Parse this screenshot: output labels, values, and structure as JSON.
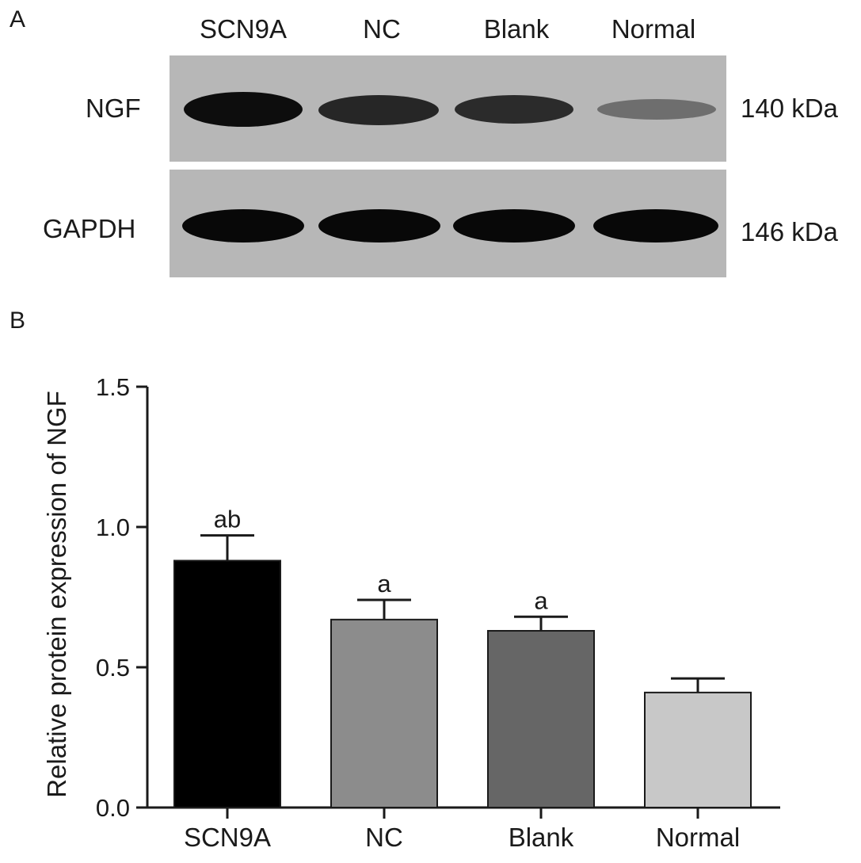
{
  "panel_a": {
    "letter": "A",
    "lanes": [
      "SCN9A",
      "NC",
      "Blank",
      "Normal"
    ],
    "rows": [
      {
        "label": "NGF",
        "size": "140 kDa",
        "band_intensity": [
          1.0,
          0.85,
          0.82,
          0.45
        ]
      },
      {
        "label": "GAPDH",
        "size": "146 kDa",
        "band_intensity": [
          1.0,
          1.0,
          1.0,
          1.0
        ]
      }
    ]
  },
  "panel_b": {
    "letter": "B"
  },
  "chart_data": {
    "type": "bar",
    "categories": [
      "SCN9A",
      "NC",
      "Blank",
      "Normal"
    ],
    "values": [
      0.88,
      0.67,
      0.63,
      0.41
    ],
    "errors": [
      0.09,
      0.07,
      0.05,
      0.05
    ],
    "annotations": [
      "ab",
      "a",
      "a",
      ""
    ],
    "colors": [
      "#000000",
      "#8c8c8c",
      "#666666",
      "#c8c8c8"
    ],
    "ylabel": "Relative protein expression of NGF",
    "xlabel": "",
    "ylim": [
      0,
      1.5
    ],
    "yticks": [
      "0.0",
      "0.5",
      "1.0",
      "1.5"
    ],
    "grid": false
  }
}
